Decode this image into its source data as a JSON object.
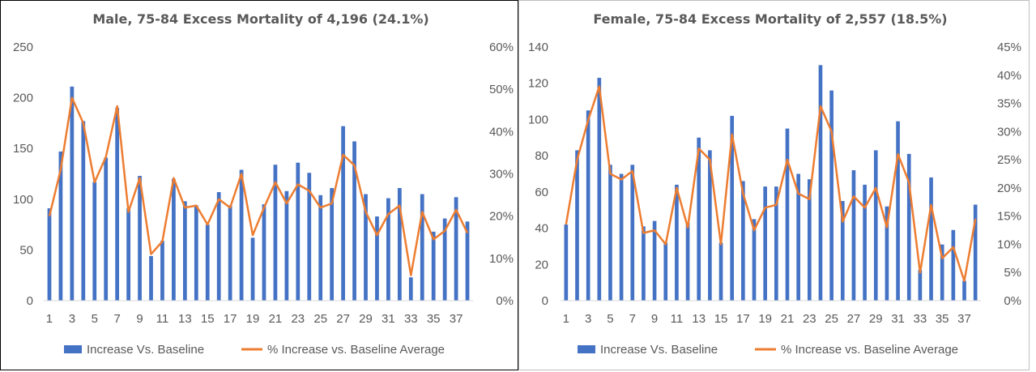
{
  "chart_data": [
    {
      "type": "bar",
      "title": "Male, 75-84 Excess Mortality of 4,196 (24.1%)",
      "x": [
        1,
        2,
        3,
        4,
        5,
        6,
        7,
        8,
        9,
        10,
        11,
        12,
        13,
        14,
        15,
        16,
        17,
        18,
        19,
        20,
        21,
        22,
        23,
        24,
        25,
        26,
        27,
        28,
        29,
        30,
        31,
        32,
        33,
        34,
        35,
        36,
        37,
        38
      ],
      "x_tick_labels": [
        "1",
        "3",
        "5",
        "7",
        "9",
        "11",
        "13",
        "15",
        "17",
        "19",
        "21",
        "23",
        "25",
        "27",
        "29",
        "31",
        "33",
        "35",
        "37"
      ],
      "ylim": [
        0,
        250
      ],
      "y_ticks": [
        "0",
        "50",
        "100",
        "150",
        "200",
        "250"
      ],
      "y2lim": [
        0,
        0.6
      ],
      "y2_ticks": [
        "0%",
        "10%",
        "20%",
        "30%",
        "40%",
        "50%",
        "60%"
      ],
      "grid": false,
      "legend_position": "bottom",
      "series": [
        {
          "name": "Increase Vs. Baseline",
          "type": "bar",
          "axis": "left",
          "color": "#4472C4",
          "values": [
            91,
            147,
            211,
            177,
            117,
            141,
            190,
            91,
            123,
            44,
            59,
            120,
            98,
            94,
            75,
            107,
            94,
            129,
            62,
            95,
            134,
            108,
            136,
            126,
            104,
            111,
            172,
            157,
            105,
            83,
            101,
            111,
            23,
            105,
            68,
            81,
            102,
            78
          ]
        },
        {
          "name": "% Increase vs. Baseline Average",
          "type": "line",
          "axis": "right",
          "color": "#ED7D31",
          "values": [
            0.2,
            0.31,
            0.48,
            0.42,
            0.28,
            0.34,
            0.46,
            0.21,
            0.29,
            0.11,
            0.14,
            0.29,
            0.22,
            0.225,
            0.18,
            0.24,
            0.22,
            0.3,
            0.155,
            0.22,
            0.28,
            0.23,
            0.275,
            0.26,
            0.22,
            0.23,
            0.345,
            0.32,
            0.21,
            0.155,
            0.205,
            0.225,
            0.06,
            0.21,
            0.145,
            0.165,
            0.215,
            0.16
          ]
        }
      ]
    },
    {
      "type": "bar",
      "title": "Female, 75-84 Excess Mortality of 2,557 (18.5%)",
      "x": [
        1,
        2,
        3,
        4,
        5,
        6,
        7,
        8,
        9,
        10,
        11,
        12,
        13,
        14,
        15,
        16,
        17,
        18,
        19,
        20,
        21,
        22,
        23,
        24,
        25,
        26,
        27,
        28,
        29,
        30,
        31,
        32,
        33,
        34,
        35,
        36,
        37,
        38
      ],
      "x_tick_labels": [
        "1",
        "3",
        "5",
        "7",
        "9",
        "11",
        "13",
        "15",
        "17",
        "19",
        "21",
        "23",
        "25",
        "27",
        "29",
        "31",
        "33",
        "35",
        "37"
      ],
      "ylim": [
        0,
        140
      ],
      "y_ticks": [
        "0",
        "20",
        "40",
        "60",
        "80",
        "100",
        "120",
        "140"
      ],
      "y2lim": [
        0,
        0.45
      ],
      "y2_ticks": [
        "0%",
        "5%",
        "10%",
        "15%",
        "20%",
        "25%",
        "30%",
        "35%",
        "40%",
        "45%"
      ],
      "grid": false,
      "legend_position": "bottom",
      "series": [
        {
          "name": "Increase Vs. Baseline",
          "type": "bar",
          "axis": "left",
          "color": "#4472C4",
          "values": [
            42,
            83,
            105,
            123,
            75,
            70,
            75,
            41,
            44,
            32,
            64,
            43,
            90,
            83,
            32,
            102,
            66,
            45,
            63,
            63,
            95,
            70,
            67,
            130,
            116,
            55,
            72,
            64,
            83,
            52,
            99,
            81,
            17,
            68,
            31,
            39,
            11,
            53
          ]
        },
        {
          "name": "% Increase vs. Baseline Average",
          "type": "line",
          "axis": "right",
          "color": "#ED7D31",
          "values": [
            0.135,
            0.25,
            0.32,
            0.38,
            0.225,
            0.215,
            0.23,
            0.12,
            0.125,
            0.1,
            0.2,
            0.13,
            0.27,
            0.25,
            0.1,
            0.295,
            0.19,
            0.125,
            0.165,
            0.17,
            0.25,
            0.19,
            0.18,
            0.345,
            0.3,
            0.14,
            0.185,
            0.165,
            0.2,
            0.13,
            0.26,
            0.21,
            0.05,
            0.17,
            0.075,
            0.095,
            0.035,
            0.145
          ]
        }
      ]
    }
  ]
}
